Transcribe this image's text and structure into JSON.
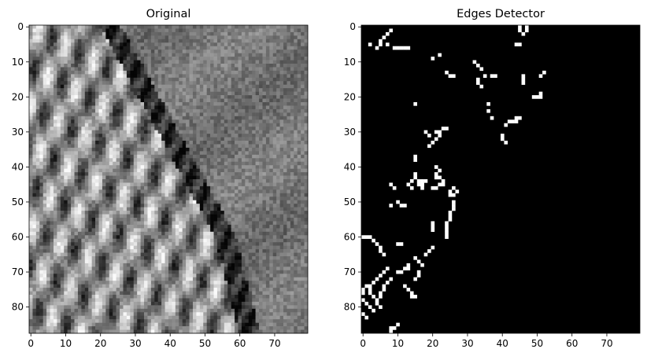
{
  "chart_data": [
    {
      "type": "heatmap",
      "title": "Original",
      "colormap": "gray",
      "xlim": [
        -0.5,
        79.5
      ],
      "ylim": [
        87.5,
        -0.5
      ],
      "xticks": [
        0,
        10,
        20,
        30,
        40,
        50,
        60,
        70
      ],
      "yticks": [
        0,
        10,
        20,
        30,
        40,
        50,
        60,
        70,
        80
      ],
      "grid": false,
      "grid_size": [
        88,
        80
      ],
      "description_note": ""
    },
    {
      "type": "heatmap",
      "title": "Edges Detector",
      "colormap": "gray",
      "xlim": [
        -0.5,
        79.5
      ],
      "ylim": [
        87.5,
        -0.5
      ],
      "xticks": [
        0,
        10,
        20,
        30,
        40,
        50,
        60,
        70
      ],
      "yticks": [
        0,
        10,
        20,
        30,
        40,
        50,
        60,
        70,
        80
      ],
      "grid": false,
      "grid_size": [
        88,
        80
      ],
      "edge_segments": [
        [
          [
            1,
            8
          ],
          [
            2,
            7
          ],
          [
            3,
            6
          ],
          [
            4,
            5
          ],
          [
            5,
            5
          ],
          [
            6,
            4
          ],
          [
            5,
            2
          ]
        ],
        [
          [
            5,
            7
          ],
          [
            6,
            9
          ],
          [
            6,
            10
          ],
          [
            6,
            11
          ],
          [
            6,
            12
          ],
          [
            6,
            13
          ]
        ],
        [
          [
            0,
            45
          ],
          [
            1,
            45
          ],
          [
            2,
            46
          ],
          [
            1,
            47
          ],
          [
            0,
            47
          ],
          [
            5,
            44
          ],
          [
            5,
            45
          ]
        ],
        [
          [
            9,
            20
          ],
          [
            8,
            22
          ]
        ],
        [
          [
            10,
            32
          ],
          [
            11,
            33
          ],
          [
            12,
            34
          ],
          [
            14,
            35
          ],
          [
            14,
            38
          ]
        ],
        [
          [
            13,
            24
          ],
          [
            14,
            25
          ],
          [
            14,
            26
          ]
        ],
        [
          [
            14,
            46
          ],
          [
            15,
            46
          ],
          [
            16,
            46
          ],
          [
            14,
            51
          ],
          [
            13,
            52
          ]
        ],
        [
          [
            15,
            33
          ],
          [
            16,
            33
          ],
          [
            17,
            34
          ]
        ],
        [
          [
            14,
            37
          ]
        ],
        [
          [
            20,
            49
          ],
          [
            20,
            50
          ],
          [
            20,
            51
          ],
          [
            19,
            51
          ]
        ],
        [
          [
            22,
            15
          ]
        ],
        [
          [
            22,
            36
          ],
          [
            24,
            36
          ],
          [
            26,
            37
          ]
        ],
        [
          [
            28,
            41
          ],
          [
            27,
            42
          ],
          [
            27,
            43
          ],
          [
            27,
            44
          ],
          [
            26,
            44
          ],
          [
            26,
            45
          ]
        ],
        [
          [
            31,
            40
          ],
          [
            32,
            40
          ],
          [
            33,
            41
          ]
        ],
        [
          [
            30,
            18
          ],
          [
            31,
            19
          ],
          [
            30,
            21
          ],
          [
            30,
            22
          ],
          [
            29,
            23
          ],
          [
            29,
            24
          ],
          [
            34,
            19
          ],
          [
            33,
            20
          ],
          [
            32,
            21
          ],
          [
            31,
            22
          ]
        ],
        [
          [
            37,
            15
          ],
          [
            38,
            15
          ]
        ],
        [
          [
            40,
            21
          ],
          [
            41,
            22
          ],
          [
            42,
            21
          ],
          [
            43,
            21
          ],
          [
            43,
            22
          ],
          [
            44,
            23
          ],
          [
            45,
            23
          ],
          [
            45,
            22
          ],
          [
            44,
            18
          ],
          [
            45,
            17
          ],
          [
            45,
            16
          ],
          [
            44,
            17
          ],
          [
            46,
            20
          ],
          [
            46,
            21
          ]
        ],
        [
          [
            42,
            15
          ],
          [
            43,
            15
          ],
          [
            44,
            16
          ],
          [
            45,
            17
          ],
          [
            46,
            17
          ],
          [
            46,
            14
          ],
          [
            45,
            13
          ],
          [
            44,
            14
          ]
        ],
        [
          [
            46,
            9
          ],
          [
            45,
            8
          ]
        ],
        [
          [
            46,
            26
          ],
          [
            47,
            27
          ],
          [
            48,
            26
          ],
          [
            47,
            25
          ],
          [
            48,
            25
          ],
          [
            50,
            26
          ],
          [
            51,
            26
          ],
          [
            52,
            26
          ]
        ],
        [
          [
            50,
            10
          ],
          [
            51,
            11
          ],
          [
            51,
            12
          ],
          [
            51,
            8
          ]
        ],
        [
          [
            53,
            25
          ],
          [
            54,
            25
          ],
          [
            55,
            25
          ],
          [
            56,
            24
          ],
          [
            57,
            24
          ],
          [
            58,
            24
          ],
          [
            59,
            24
          ],
          [
            60,
            24
          ]
        ],
        [
          [
            56,
            20
          ],
          [
            57,
            20
          ],
          [
            58,
            20
          ]
        ],
        [
          [
            60,
            0
          ],
          [
            60,
            1
          ],
          [
            60,
            2
          ],
          [
            61,
            3
          ],
          [
            62,
            4
          ],
          [
            63,
            5
          ],
          [
            64,
            5
          ],
          [
            65,
            6
          ]
        ],
        [
          [
            62,
            10
          ],
          [
            62,
            11
          ]
        ],
        [
          [
            65,
            18
          ],
          [
            64,
            19
          ],
          [
            63,
            20
          ]
        ],
        [
          [
            66,
            15
          ],
          [
            67,
            16
          ],
          [
            68,
            17
          ]
        ],
        [
          [
            68,
            13
          ],
          [
            69,
            13
          ],
          [
            69,
            12
          ],
          [
            70,
            11
          ],
          [
            70,
            10
          ]
        ],
        [
          [
            69,
            7
          ],
          [
            70,
            6
          ],
          [
            71,
            5
          ],
          [
            72,
            4
          ],
          [
            73,
            3
          ],
          [
            74,
            2
          ],
          [
            74,
            1
          ],
          [
            75,
            0
          ],
          [
            76,
            0
          ]
        ],
        [
          [
            70,
            16
          ],
          [
            71,
            16
          ],
          [
            72,
            15
          ]
        ],
        [
          [
            72,
            8
          ],
          [
            73,
            7
          ],
          [
            74,
            6
          ],
          [
            75,
            6
          ],
          [
            76,
            5
          ],
          [
            77,
            5
          ]
        ],
        [
          [
            75,
            2
          ],
          [
            76,
            2
          ],
          [
            77,
            3
          ],
          [
            78,
            4
          ],
          [
            79,
            4
          ],
          [
            80,
            5
          ]
        ],
        [
          [
            74,
            12
          ],
          [
            75,
            13
          ],
          [
            76,
            14
          ],
          [
            77,
            14
          ],
          [
            77,
            15
          ]
        ],
        [
          [
            78,
            0
          ],
          [
            79,
            1
          ],
          [
            80,
            2
          ],
          [
            81,
            3
          ]
        ],
        [
          [
            82,
            0
          ],
          [
            83,
            1
          ]
        ],
        [
          [
            85,
            10
          ],
          [
            86,
            9
          ],
          [
            87,
            8
          ],
          [
            86,
            8
          ]
        ]
      ]
    }
  ]
}
